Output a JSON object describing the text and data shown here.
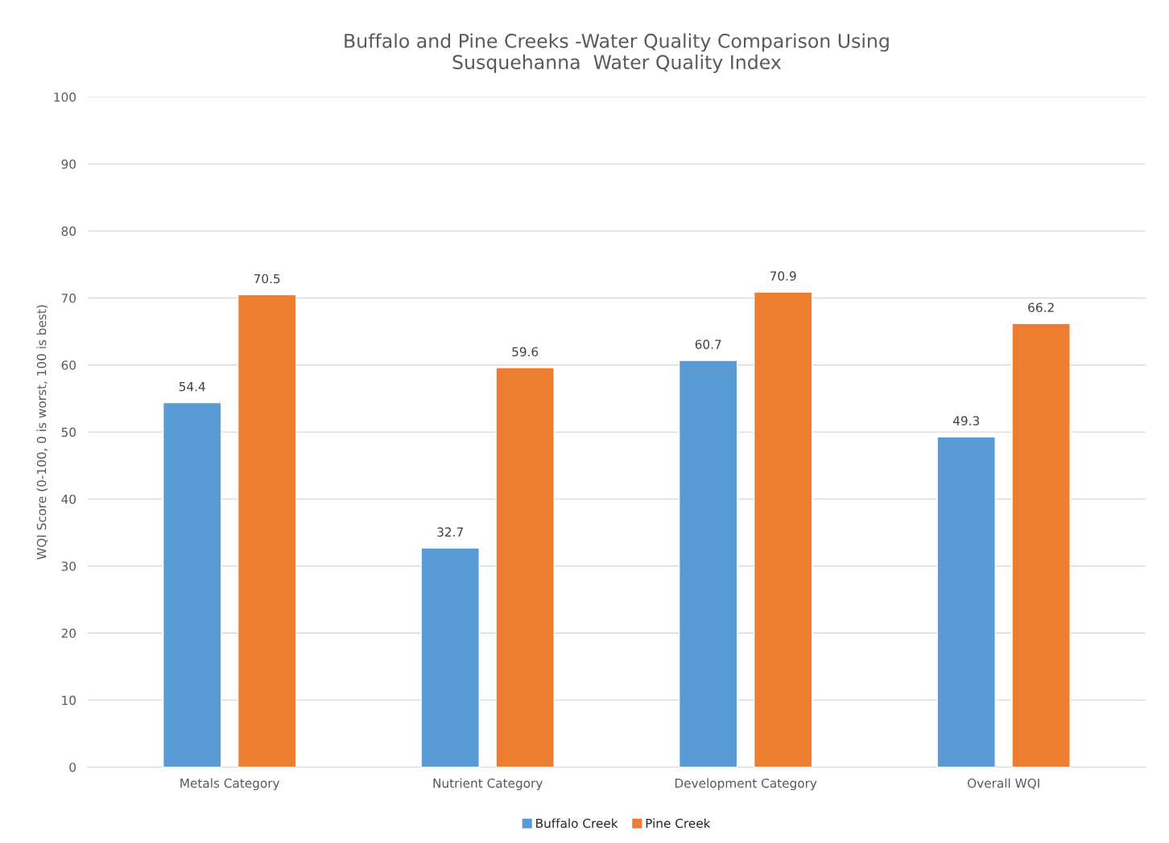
{
  "chart_data": {
    "type": "bar",
    "title": "Buffalo and Pine Creeks -Water Quality Comparison Using\nSusquehanna  Water Quality Index",
    "ylabel": "WQI Score (0-100, 0 is worst, 100 is best)",
    "categories": [
      "Metals Category",
      "Nutrient Category",
      "Development Category",
      "Overall WQI"
    ],
    "series": [
      {
        "name": "Buffalo Creek",
        "color": "#5b9bd5",
        "values": [
          54.4,
          32.7,
          60.7,
          49.3
        ]
      },
      {
        "name": "Pine Creek",
        "color": "#ed7d31",
        "values": [
          70.5,
          59.6,
          70.9,
          66.2
        ]
      }
    ],
    "ylim": [
      0,
      100
    ],
    "yticks": [
      0,
      10,
      20,
      30,
      40,
      50,
      60,
      70,
      80,
      90,
      100
    ],
    "grid": "y",
    "legend": "bottom",
    "data_labels": true
  }
}
